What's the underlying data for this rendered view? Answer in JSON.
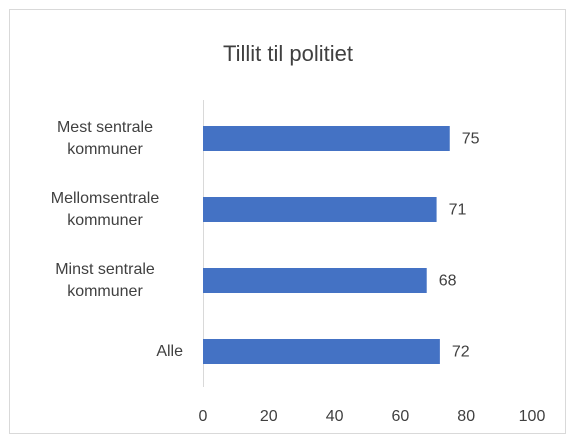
{
  "chart_data": {
    "type": "barh",
    "title": "Tillit til politiet",
    "categories": [
      "Mest sentrale kommuner",
      "Mellomsentrale kommuner",
      "Minst sentrale kommuner",
      "Alle"
    ],
    "values": [
      75,
      71,
      68,
      72
    ],
    "color": "#4472c4",
    "xlim": [
      0,
      100
    ],
    "xticks": [
      0,
      20,
      40,
      60,
      80,
      100
    ],
    "grid": false
  }
}
